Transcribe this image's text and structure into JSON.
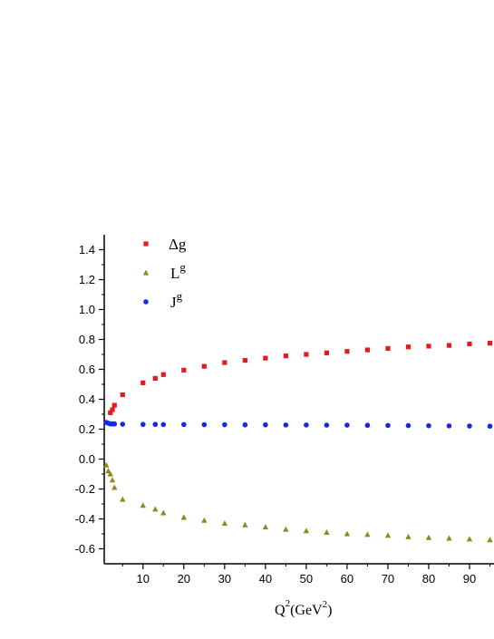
{
  "chart_data": {
    "type": "scatter",
    "xlabel": {
      "main": "Q",
      "exp": "2",
      "unit_open": "(GeV",
      "unit_exp": "2",
      "unit_close": ")"
    },
    "ylabel": "",
    "xlim": [
      0.5,
      96
    ],
    "ylim": [
      -0.7,
      1.5
    ],
    "x_ticks": [
      10,
      20,
      30,
      40,
      50,
      60,
      70,
      80,
      90
    ],
    "y_ticks": [
      -0.6,
      -0.4,
      -0.2,
      0.0,
      0.2,
      0.4,
      0.6,
      0.8,
      1.0,
      1.2,
      1.4
    ],
    "y_tick_labels": [
      "-0.6",
      "-0.4",
      "-0.2",
      "0.0",
      "0.2",
      "0.4",
      "0.6",
      "0.8",
      "1.0",
      "1.2",
      "1.4"
    ],
    "legend_position": "top-left",
    "series": [
      {
        "name": "Δg",
        "legend_main": "Δg",
        "legend_sup": "",
        "marker": "square",
        "color": "#e8191b",
        "x": [
          2,
          2.5,
          3,
          5,
          10,
          13,
          15,
          20,
          25,
          30,
          35,
          40,
          45,
          50,
          55,
          60,
          65,
          70,
          75,
          80,
          85,
          90,
          95
        ],
        "y": [
          0.31,
          0.33,
          0.36,
          0.43,
          0.51,
          0.54,
          0.565,
          0.595,
          0.62,
          0.645,
          0.66,
          0.675,
          0.69,
          0.7,
          0.71,
          0.72,
          0.73,
          0.74,
          0.75,
          0.755,
          0.76,
          0.77,
          0.775
        ]
      },
      {
        "name": "Lg",
        "legend_main": "L",
        "legend_sup": "g",
        "marker": "triangle",
        "color": "#8f8a1a",
        "x": [
          1,
          1.5,
          2,
          2.5,
          3,
          5,
          10,
          13,
          15,
          20,
          25,
          30,
          35,
          40,
          45,
          50,
          55,
          60,
          65,
          70,
          75,
          80,
          85,
          90,
          95
        ],
        "y": [
          -0.04,
          -0.08,
          -0.1,
          -0.14,
          -0.19,
          -0.27,
          -0.31,
          -0.335,
          -0.36,
          -0.39,
          -0.41,
          -0.43,
          -0.44,
          -0.455,
          -0.47,
          -0.48,
          -0.49,
          -0.5,
          -0.505,
          -0.51,
          -0.52,
          -0.525,
          -0.53,
          -0.535,
          -0.54
        ]
      },
      {
        "name": "Jg",
        "legend_main": "J",
        "legend_sup": "g",
        "marker": "circle",
        "color": "#1428e8",
        "x": [
          1,
          1.5,
          2,
          2.5,
          3,
          5,
          10,
          13,
          15,
          20,
          25,
          30,
          35,
          40,
          45,
          50,
          55,
          60,
          65,
          70,
          75,
          80,
          85,
          90,
          95
        ],
        "y": [
          0.245,
          0.24,
          0.235,
          0.235,
          0.235,
          0.233,
          0.232,
          0.232,
          0.231,
          0.231,
          0.23,
          0.23,
          0.229,
          0.229,
          0.228,
          0.228,
          0.227,
          0.227,
          0.226,
          0.225,
          0.224,
          0.223,
          0.222,
          0.221,
          0.22
        ]
      }
    ]
  }
}
